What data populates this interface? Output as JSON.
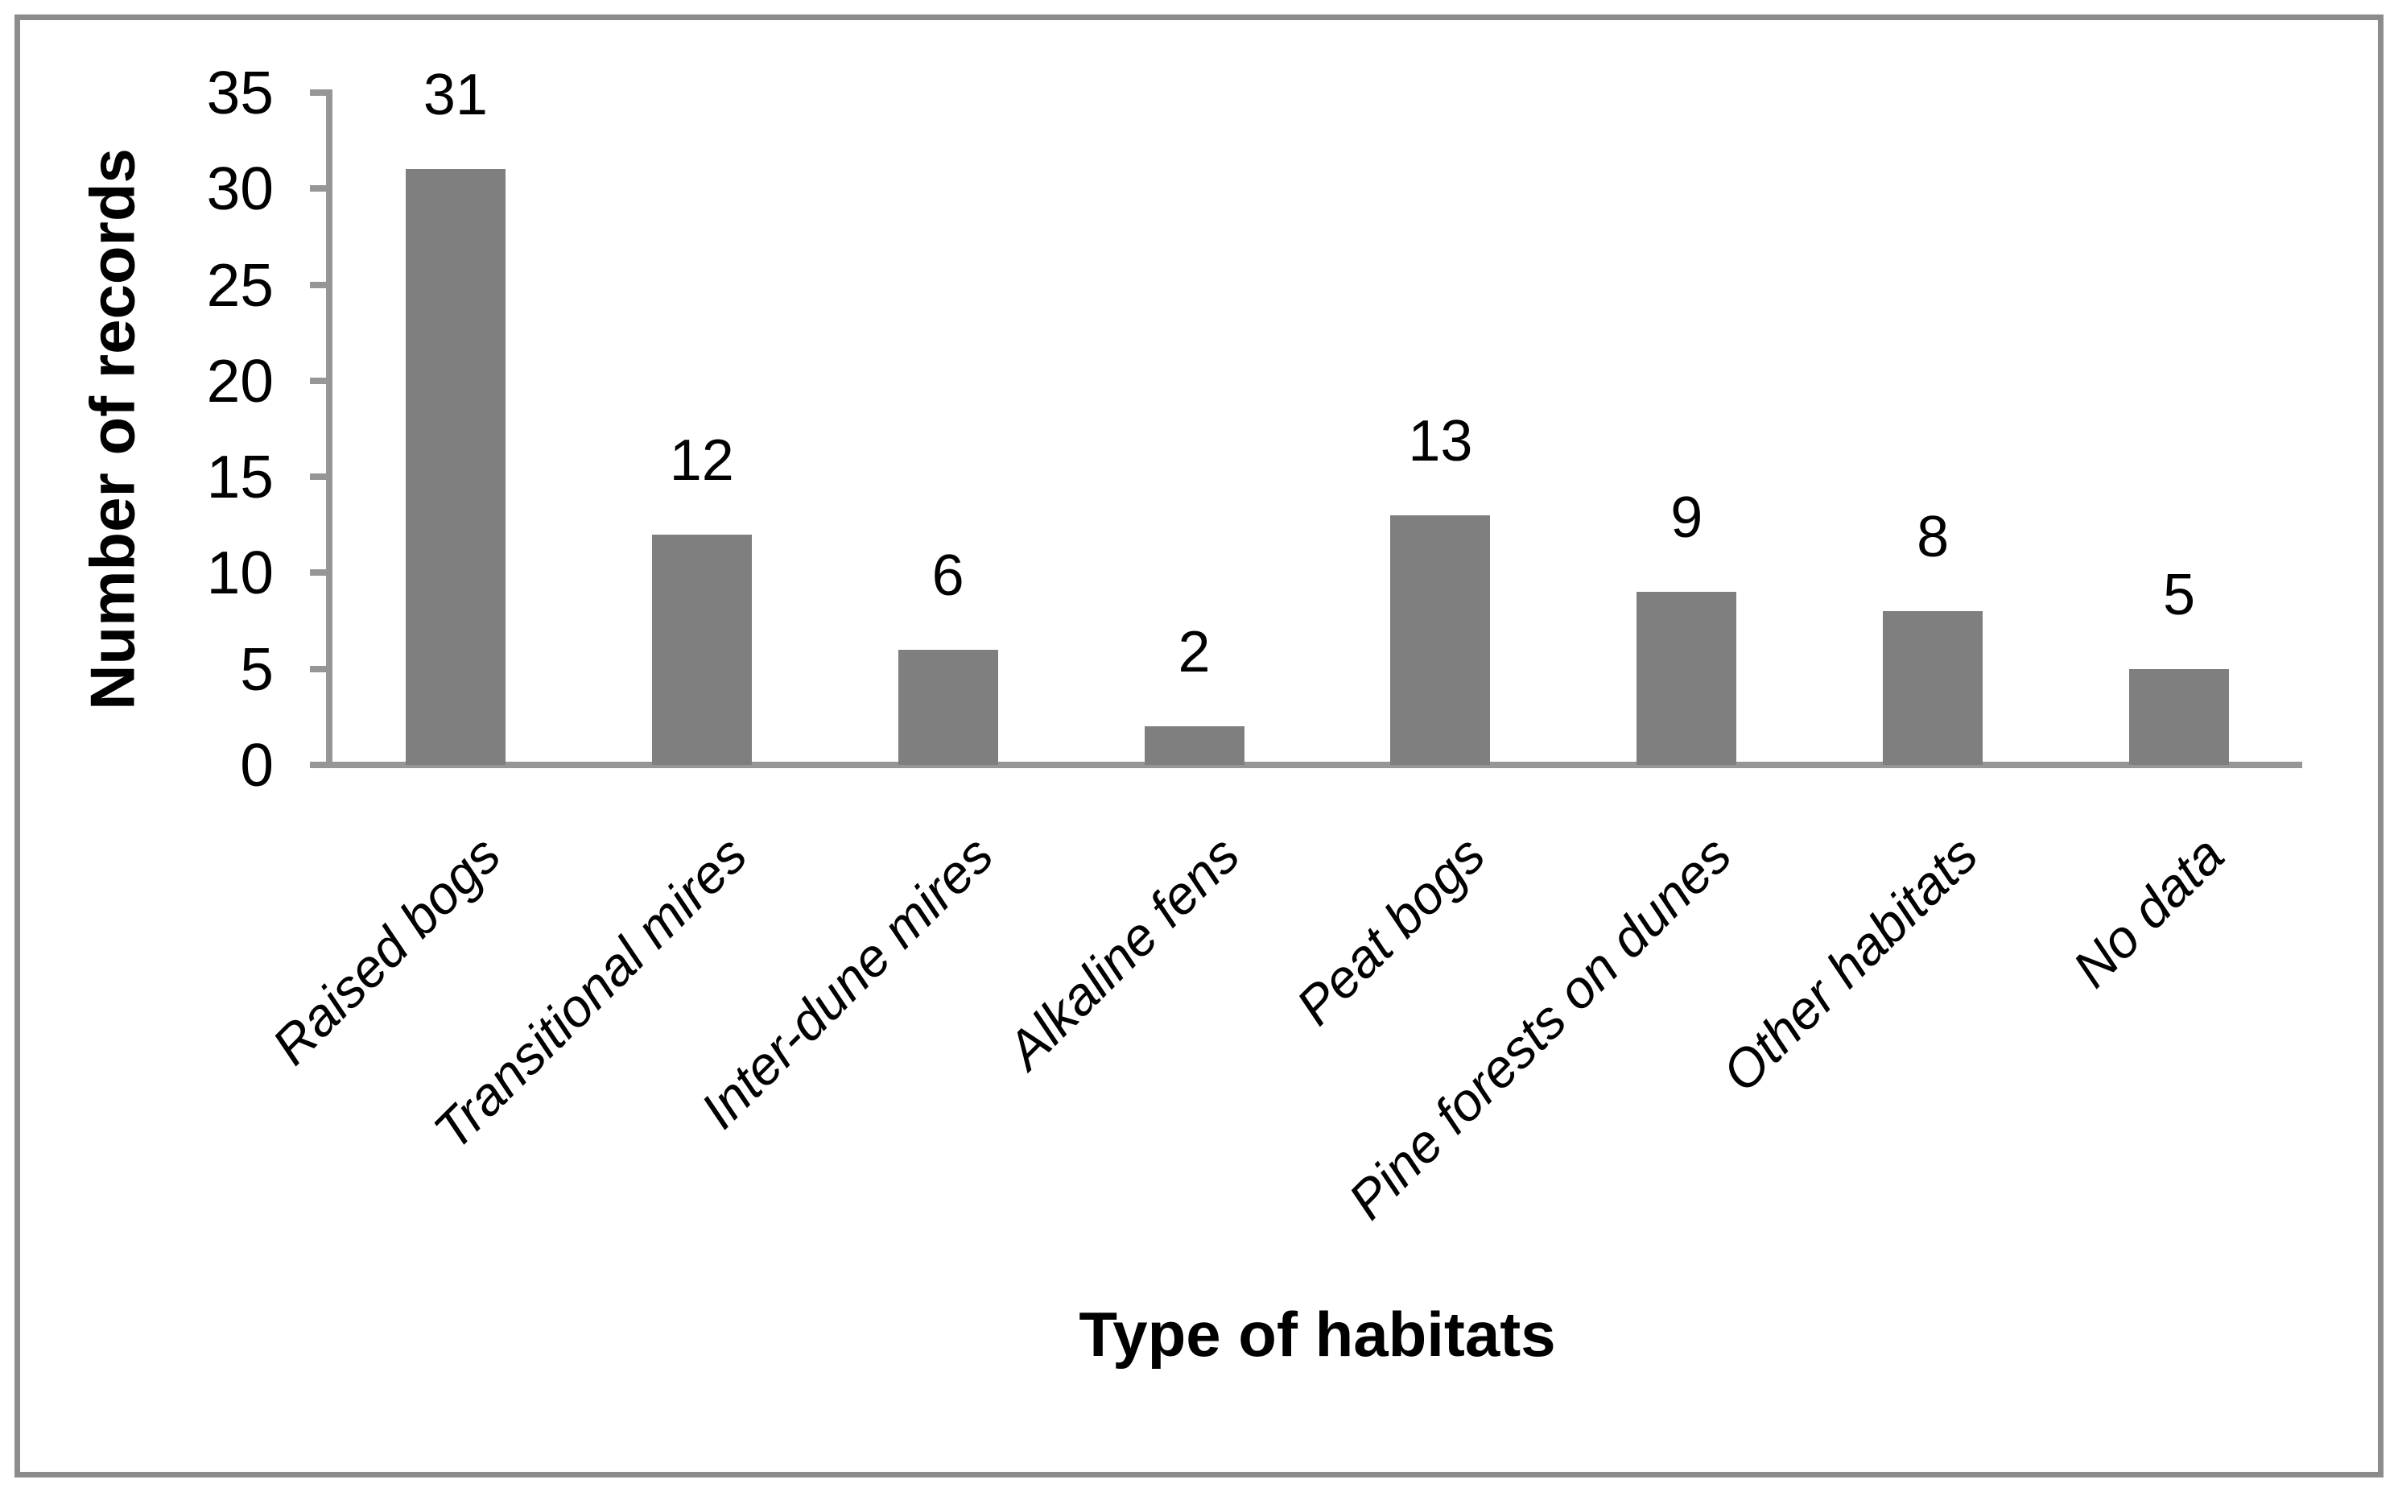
{
  "figure": {
    "background_color": "#ffffff",
    "frame_border_color": "#8c8c8c"
  },
  "chart_data": {
    "type": "bar",
    "title": "",
    "categories": [
      "Raised bogs",
      "Transitional mires",
      "Inter-dune mires",
      "Alkaline fens",
      "Peat bogs",
      "Pine forests on dunes",
      "Other habitats",
      "No data"
    ],
    "values": [
      31,
      12,
      6,
      2,
      13,
      9,
      8,
      5
    ],
    "data_labels_shown": true,
    "xlabel": "Type of habitats",
    "ylabel": "Number of records",
    "ylim": [
      0,
      35
    ],
    "yticks": [
      0,
      5,
      10,
      15,
      20,
      25,
      30,
      35
    ],
    "grid": false,
    "legend": null,
    "bar_color": "#7f7f7f",
    "axis_color": "#969696",
    "text_color": "#000000"
  }
}
